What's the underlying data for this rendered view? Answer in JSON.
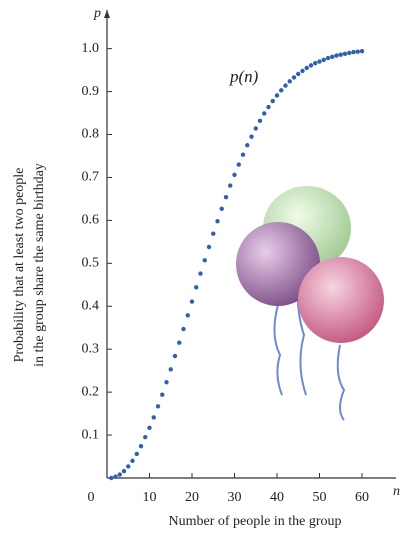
{
  "chart_data": {
    "type": "scatter",
    "x_label": "Number of people in the group",
    "y_label": [
      "Probability that at least two people",
      "in the group share the same birthday"
    ],
    "x_axis_name": "n",
    "y_axis_name": "p",
    "annotation": "p(n)",
    "color": "#2f5fb3",
    "x": [
      1,
      2,
      3,
      4,
      5,
      6,
      7,
      8,
      9,
      10,
      11,
      12,
      13,
      14,
      15,
      16,
      17,
      18,
      19,
      20,
      21,
      22,
      23,
      24,
      25,
      26,
      27,
      28,
      29,
      30,
      31,
      32,
      33,
      34,
      35,
      36,
      37,
      38,
      39,
      40,
      41,
      42,
      43,
      44,
      45,
      46,
      47,
      48,
      49,
      50,
      51,
      52,
      53,
      54,
      55,
      56,
      57,
      58,
      59,
      60
    ],
    "y": [
      0,
      0.003,
      0.008,
      0.016,
      0.027,
      0.04,
      0.056,
      0.074,
      0.095,
      0.117,
      0.141,
      0.167,
      0.194,
      0.223,
      0.253,
      0.284,
      0.315,
      0.347,
      0.379,
      0.411,
      0.444,
      0.476,
      0.507,
      0.538,
      0.569,
      0.598,
      0.627,
      0.654,
      0.681,
      0.706,
      0.73,
      0.753,
      0.775,
      0.795,
      0.814,
      0.832,
      0.849,
      0.864,
      0.878,
      0.891,
      0.903,
      0.914,
      0.924,
      0.933,
      0.941,
      0.948,
      0.955,
      0.961,
      0.966,
      0.97,
      0.974,
      0.978,
      0.981,
      0.984,
      0.986,
      0.988,
      0.99,
      0.992,
      0.993,
      0.994
    ],
    "xlim": [
      0,
      68
    ],
    "ylim": [
      0,
      1.09
    ],
    "xticks": [
      0,
      10,
      20,
      30,
      40,
      50,
      60
    ],
    "yticks": [
      0.1,
      0.2,
      0.3,
      0.4,
      0.5,
      0.6,
      0.7,
      0.8,
      0.9,
      {
        "value": 1,
        "label": "1.0"
      }
    ]
  }
}
